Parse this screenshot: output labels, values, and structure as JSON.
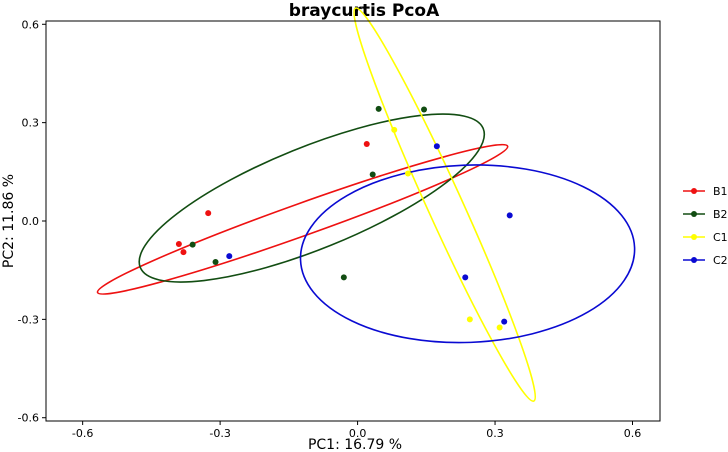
{
  "chart_data": {
    "type": "scatter",
    "title": "braycurtis PcoA",
    "xlabel": "PC1:  16.79 %",
    "ylabel": "PC2:  11.86 %",
    "xlim": [
      -0.68,
      0.66
    ],
    "ylim": [
      -0.61,
      0.61
    ],
    "xticks": [
      -0.6,
      -0.3,
      0.0,
      0.3,
      0.6
    ],
    "xtick_labels": [
      "-0.6",
      "-0.3",
      "0.0",
      "0.3",
      "0.6"
    ],
    "yticks": [
      -0.6,
      -0.3,
      0.0,
      0.3,
      0.6
    ],
    "ytick_labels": [
      "-0.6",
      "-0.3",
      "0.0",
      "0.3",
      "0.6"
    ],
    "grid": false,
    "legend_position": "right",
    "series": [
      {
        "name": "B1",
        "color": "#ee1111",
        "points": [
          [
            -0.326,
            0.024
          ],
          [
            -0.39,
            -0.07
          ],
          [
            -0.38,
            -0.095
          ],
          [
            0.02,
            0.235
          ]
        ],
        "ellipse": {
          "cx": -0.12,
          "cy": 0.005,
          "rx": 0.5,
          "ry": 0.045,
          "angle_deg": 26.5
        }
      },
      {
        "name": "B2",
        "color": "#124d12",
        "points": [
          [
            -0.36,
            -0.072
          ],
          [
            -0.31,
            -0.125
          ],
          [
            -0.03,
            -0.172
          ],
          [
            0.033,
            0.142
          ],
          [
            0.046,
            0.342
          ],
          [
            0.145,
            0.34
          ]
        ],
        "ellipse": {
          "cx": -0.1,
          "cy": 0.07,
          "rx": 0.43,
          "ry": 0.14,
          "angle_deg": 29.5
        }
      },
      {
        "name": "C1",
        "color": "#ffff00",
        "points": [
          [
            0.08,
            0.278
          ],
          [
            0.11,
            0.145
          ],
          [
            0.245,
            -0.3
          ],
          [
            0.31,
            -0.325
          ]
        ],
        "ellipse": {
          "cx": 0.19,
          "cy": 0.05,
          "rx": 0.63,
          "ry": 0.039,
          "angle_deg": -72
        }
      },
      {
        "name": "C2",
        "color": "#0a0ad2",
        "points": [
          [
            -0.28,
            -0.107
          ],
          [
            0.173,
            0.228
          ],
          [
            0.332,
            0.017
          ],
          [
            0.235,
            -0.172
          ],
          [
            0.32,
            -0.307
          ]
        ],
        "ellipse": {
          "cx": 0.24,
          "cy": -0.1,
          "rx": 0.365,
          "ry": 0.27,
          "angle_deg": 3
        }
      }
    ]
  }
}
